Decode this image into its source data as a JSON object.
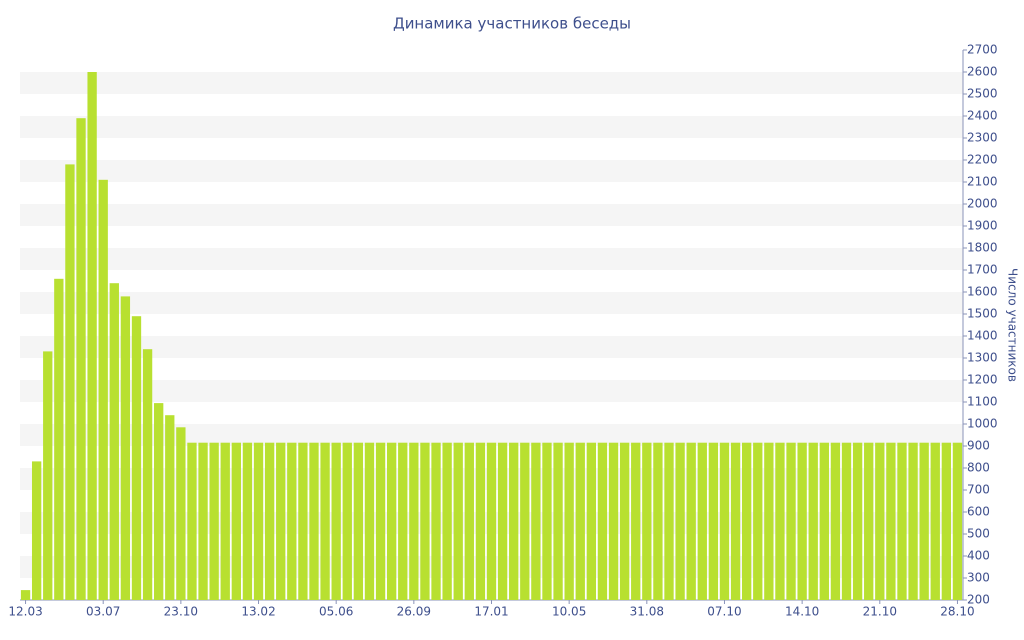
{
  "chart_data": {
    "type": "bar",
    "title": "Динамика участников беседы",
    "y_label": "Число участников",
    "categories": [
      "12.03",
      null,
      null,
      null,
      null,
      null,
      null,
      "03.07",
      null,
      null,
      null,
      null,
      null,
      null,
      "23.10",
      null,
      null,
      null,
      null,
      null,
      null,
      "13.02",
      null,
      null,
      null,
      null,
      null,
      null,
      "05.06",
      null,
      null,
      null,
      null,
      null,
      null,
      "26.09",
      null,
      null,
      null,
      null,
      null,
      null,
      "17.01",
      null,
      null,
      null,
      null,
      null,
      null,
      "10.05",
      null,
      null,
      null,
      null,
      null,
      null,
      "31.08",
      null,
      null,
      null,
      null,
      null,
      null,
      "07.10",
      null,
      null,
      null,
      null,
      null,
      null,
      "14.10",
      null,
      null,
      null,
      null,
      null,
      null,
      "21.10",
      null,
      null,
      null,
      null,
      null,
      null,
      "28.10"
    ],
    "values": [
      245,
      830,
      1330,
      1660,
      2180,
      2390,
      2600,
      2110,
      1640,
      1580,
      1490,
      1340,
      1095,
      1040,
      985,
      915,
      915,
      915,
      915,
      915,
      915,
      915,
      915,
      915,
      915,
      915,
      915,
      915,
      915,
      915,
      915,
      915,
      915,
      915,
      915,
      915,
      915,
      915,
      915,
      915,
      915,
      915,
      915,
      915,
      915,
      915,
      915,
      915,
      915,
      915,
      915,
      915,
      915,
      915,
      915,
      915,
      915,
      915,
      915,
      915,
      915,
      915,
      915,
      915,
      915,
      915,
      915,
      915,
      915,
      915,
      915,
      915,
      915,
      915,
      915,
      915,
      915,
      915,
      915,
      915,
      915,
      915,
      915,
      915,
      915
    ],
    "color": "#b8e030",
    "ylim": [
      200,
      2700
    ],
    "yticks": [
      200,
      300,
      400,
      500,
      600,
      700,
      800,
      900,
      1000,
      1100,
      1200,
      1300,
      1400,
      1500,
      1600,
      1700,
      1800,
      1900,
      2000,
      2100,
      2200,
      2300,
      2400,
      2500,
      2600,
      2700
    ],
    "grid": true
  }
}
